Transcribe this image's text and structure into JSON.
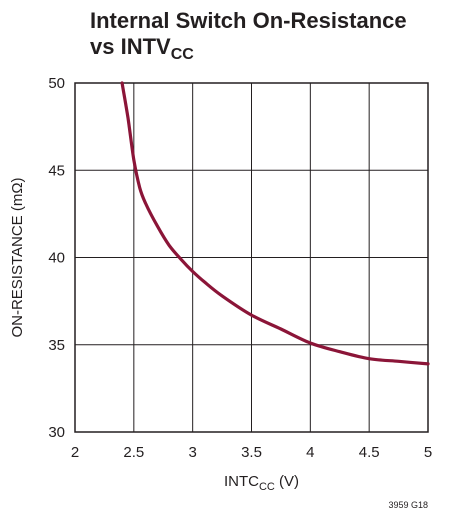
{
  "title": {
    "line1": "Internal Switch On-Resistance",
    "line2_main": "vs INTV",
    "line2_sub": "CC"
  },
  "figure_id": "3959 G18",
  "colors": {
    "curve": "#8b1538",
    "grid": "#231f20",
    "text": "#231f20"
  },
  "chart_data": {
    "type": "line",
    "xlabel_main": "INTC",
    "xlabel_sub": "CC",
    "xlabel_unit": " (V)",
    "ylabel": "ON-RESISTANCE (mΩ)",
    "xlim": [
      2,
      5
    ],
    "ylim": [
      30,
      50
    ],
    "xticks": [
      2,
      2.5,
      3,
      3.5,
      4,
      4.5,
      5
    ],
    "xtick_labels": [
      "2",
      "2.5",
      "3",
      "3.5",
      "4",
      "4.5",
      "5"
    ],
    "yticks": [
      30,
      35,
      40,
      45,
      50
    ],
    "ytick_labels": [
      "30",
      "35",
      "40",
      "45",
      "50"
    ],
    "grid": true,
    "series": [
      {
        "x": [
          2.4,
          2.45,
          2.5,
          2.55,
          2.6,
          2.7,
          2.8,
          2.9,
          3.0,
          3.1,
          3.25,
          3.5,
          3.75,
          4.0,
          4.25,
          4.5,
          4.75,
          5.0
        ],
        "y": [
          50.0,
          48.0,
          45.6,
          44.0,
          43.1,
          41.8,
          40.7,
          39.9,
          39.2,
          38.6,
          37.8,
          36.7,
          35.9,
          35.1,
          34.6,
          34.2,
          34.05,
          33.9
        ]
      }
    ]
  }
}
